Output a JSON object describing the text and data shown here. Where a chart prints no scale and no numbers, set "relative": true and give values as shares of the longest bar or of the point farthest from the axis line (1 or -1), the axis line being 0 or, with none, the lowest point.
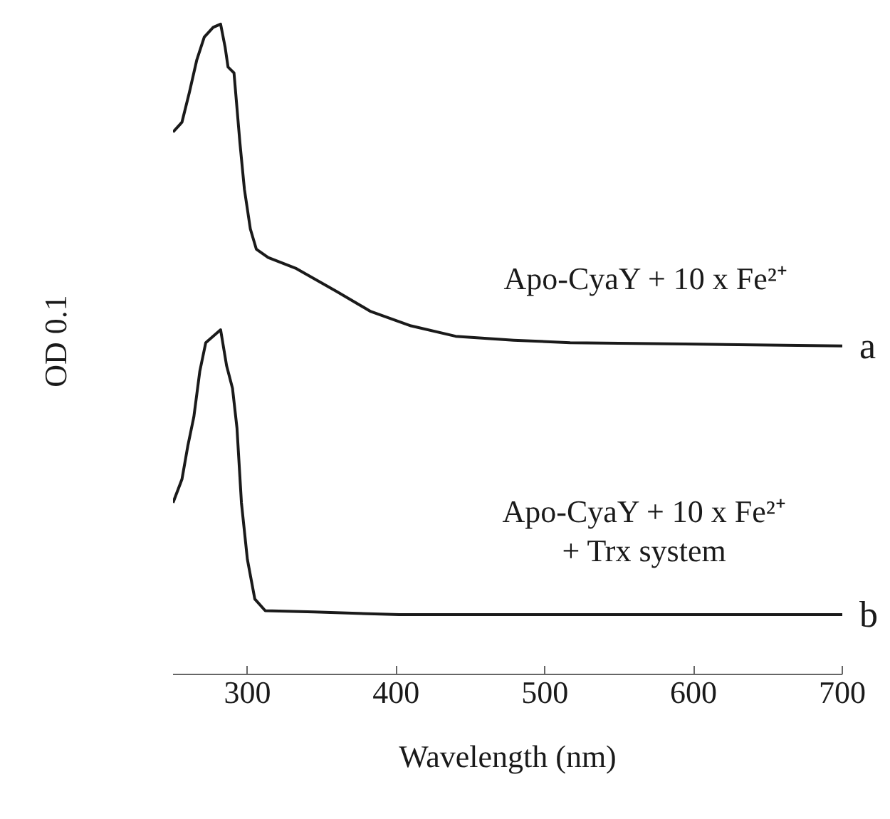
{
  "chart_data": {
    "type": "line",
    "relative": true,
    "xlabel": "Wavelength (nm)",
    "ylabel": "OD 0.1",
    "xlim": [
      250,
      700
    ],
    "xticks": [
      300,
      400,
      500,
      600,
      700
    ],
    "grid": false,
    "marker": "none",
    "line_style": "solid",
    "series": [
      {
        "name": "a",
        "color": "#1a1a1a",
        "x": [
          250,
          256,
          261,
          266,
          271,
          277,
          282,
          285,
          287,
          291,
          295,
          298,
          302,
          306,
          314,
          333,
          360,
          383,
          410,
          440,
          479,
          517,
          594,
          700
        ],
        "values": [
          0.834,
          0.849,
          0.895,
          0.945,
          0.98,
          0.995,
          1.0,
          0.965,
          0.934,
          0.925,
          0.817,
          0.746,
          0.685,
          0.654,
          0.641,
          0.624,
          0.589,
          0.558,
          0.536,
          0.52,
          0.514,
          0.51,
          0.508,
          0.505
        ]
      },
      {
        "name": "b",
        "color": "#1a1a1a",
        "x": [
          250,
          256,
          260,
          264,
          268,
          272,
          282,
          286,
          290,
          293,
          296,
          300,
          305,
          312,
          345,
          402,
          700
        ],
        "values": [
          0.264,
          0.3,
          0.352,
          0.396,
          0.466,
          0.51,
          0.53,
          0.475,
          0.44,
          0.379,
          0.264,
          0.177,
          0.116,
          0.098,
          0.096,
          0.092,
          0.092
        ]
      }
    ],
    "annotations": [
      "Apo-CyaY + 10 x Fe²⁺",
      "Apo-CyaY + 10 x Fe²⁺\n+ Trx system"
    ]
  }
}
